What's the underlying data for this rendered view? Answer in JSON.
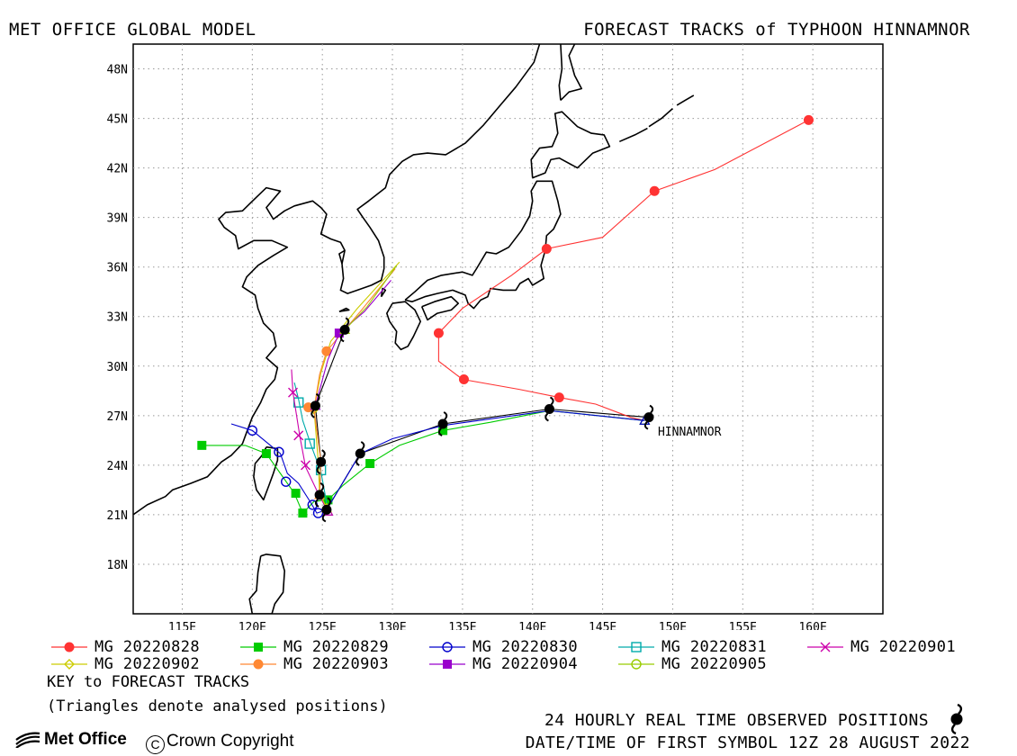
{
  "header": {
    "left_title": "MET OFFICE GLOBAL MODEL",
    "right_title": "FORECAST TRACKS of TYPHOON HINNAMNOR"
  },
  "map": {
    "lon_range": [
      111.5,
      165
    ],
    "lat_range": [
      15,
      49.5
    ],
    "lon_ticks": [
      "115E",
      "120E",
      "125E",
      "130E",
      "135E",
      "140E",
      "145E",
      "150E",
      "155E",
      "160E"
    ],
    "lon_tick_values": [
      115,
      120,
      125,
      130,
      135,
      140,
      145,
      150,
      155,
      160
    ],
    "lat_ticks": [
      "18N",
      "21N",
      "24N",
      "27N",
      "30N",
      "33N",
      "36N",
      "39N",
      "42N",
      "45N",
      "48N"
    ],
    "lat_tick_values": [
      18,
      21,
      24,
      27,
      30,
      33,
      36,
      39,
      42,
      45,
      48
    ],
    "grid": "dotted",
    "storm_label": "HINNAMNOR",
    "storm_label_position": [
      148.3,
      26.0
    ]
  },
  "chart_data": {
    "type": "map-tracks",
    "title": "FORECAST TRACKS of TYPHOON HINNAMNOR",
    "observed_track": [
      [
        148.3,
        26.9
      ],
      [
        141.2,
        27.4
      ],
      [
        133.6,
        26.5
      ],
      [
        127.7,
        24.7
      ],
      [
        125.3,
        21.3
      ],
      [
        124.8,
        22.2
      ],
      [
        124.9,
        24.2
      ],
      [
        124.5,
        27.6
      ],
      [
        126.6,
        32.2
      ]
    ],
    "tracks": [
      {
        "name": "MG 20220828",
        "color": "#ff3333",
        "marker": "circle-filled",
        "points": [
          [
            148.0,
            26.7
          ],
          [
            147.0,
            26.9
          ],
          [
            144.5,
            27.7
          ],
          [
            141.9,
            28.1
          ],
          [
            139.0,
            28.6
          ],
          [
            135.0,
            29.2
          ],
          [
            133.3,
            30.3
          ],
          [
            133.3,
            32.0
          ],
          [
            135.0,
            33.5
          ],
          [
            138.5,
            35.5
          ],
          [
            141.0,
            37.1
          ],
          [
            145.0,
            37.8
          ],
          [
            148.7,
            40.6
          ],
          [
            153.0,
            41.9
          ],
          [
            159.7,
            44.9
          ]
        ],
        "marker_points": [
          [
            141.9,
            28.1
          ],
          [
            135.1,
            29.2
          ],
          [
            133.3,
            32.0
          ],
          [
            141.0,
            37.1
          ],
          [
            148.7,
            40.6
          ],
          [
            159.7,
            44.9
          ]
        ]
      },
      {
        "name": "MG 20220829",
        "color": "#00cc00",
        "marker": "square-filled",
        "points": [
          [
            148.0,
            26.7
          ],
          [
            141.2,
            27.3
          ],
          [
            137.0,
            26.6
          ],
          [
            133.6,
            26.1
          ],
          [
            130.5,
            25.2
          ],
          [
            128.4,
            24.1
          ],
          [
            126.5,
            22.8
          ],
          [
            125.4,
            21.9
          ],
          [
            124.4,
            21.8
          ],
          [
            123.6,
            21.1
          ],
          [
            123.0,
            22.3
          ],
          [
            122.0,
            23.5
          ],
          [
            121.0,
            24.7
          ],
          [
            119.5,
            25.2
          ],
          [
            116.4,
            25.2
          ]
        ],
        "marker_points": [
          [
            128.4,
            24.1
          ],
          [
            133.6,
            26.1
          ],
          [
            125.4,
            21.9
          ],
          [
            123.6,
            21.1
          ],
          [
            123.1,
            22.3
          ],
          [
            121.0,
            24.7
          ],
          [
            116.4,
            25.2
          ]
        ]
      },
      {
        "name": "MG 20220830",
        "color": "#0000cc",
        "marker": "circle-open",
        "points": [
          [
            148.0,
            26.7
          ],
          [
            141.2,
            27.3
          ],
          [
            133.6,
            26.4
          ],
          [
            130.0,
            25.6
          ],
          [
            127.7,
            24.7
          ],
          [
            125.3,
            21.3
          ],
          [
            124.6,
            21.1
          ],
          [
            124.2,
            21.7
          ],
          [
            123.3,
            22.9
          ],
          [
            122.5,
            23.5
          ],
          [
            122.0,
            24.7
          ],
          [
            120.0,
            26.1
          ],
          [
            118.5,
            26.5
          ]
        ],
        "marker_points": [
          [
            124.7,
            21.1
          ],
          [
            124.3,
            21.6
          ],
          [
            122.4,
            23.0
          ],
          [
            121.9,
            24.8
          ],
          [
            120.0,
            26.1
          ]
        ]
      },
      {
        "name": "MG 20220831",
        "color": "#00aaaa",
        "marker": "square-open",
        "points": [
          [
            125.4,
            21.2
          ],
          [
            125.2,
            22.2
          ],
          [
            124.9,
            23.6
          ],
          [
            124.2,
            25.2
          ],
          [
            123.6,
            26.7
          ],
          [
            123.3,
            28.0
          ],
          [
            123.0,
            29.0
          ]
        ],
        "marker_points": [
          [
            124.9,
            23.7
          ],
          [
            124.1,
            25.3
          ],
          [
            123.3,
            27.8
          ]
        ]
      },
      {
        "name": "MG 20220901",
        "color": "#cc00aa",
        "marker": "x",
        "points": [
          [
            125.4,
            21.2
          ],
          [
            124.7,
            22.3
          ],
          [
            123.8,
            23.9
          ],
          [
            123.4,
            25.7
          ],
          [
            122.9,
            28.4
          ],
          [
            122.8,
            29.8
          ]
        ],
        "marker_points": [
          [
            123.8,
            24.0
          ],
          [
            123.3,
            25.8
          ],
          [
            122.9,
            28.4
          ]
        ]
      },
      {
        "name": "MG 20220902",
        "color": "#cccc00",
        "marker": "diamond-open",
        "points": [
          [
            125.3,
            21.4
          ],
          [
            124.8,
            22.3
          ],
          [
            124.7,
            24.3
          ],
          [
            124.4,
            27.4
          ],
          [
            124.9,
            29.6
          ],
          [
            125.6,
            31.5
          ],
          [
            127.5,
            33.5
          ],
          [
            130.5,
            36.3
          ]
        ],
        "marker_points": [
          [
            124.4,
            27.4
          ]
        ]
      },
      {
        "name": "MG 20220903",
        "color": "#ff8833",
        "marker": "circle-filled",
        "points": [
          [
            124.8,
            22.2
          ],
          [
            124.9,
            24.2
          ],
          [
            124.4,
            27.4
          ],
          [
            124.8,
            29.5
          ],
          [
            125.3,
            30.9
          ],
          [
            126.4,
            32.0
          ],
          [
            127.8,
            33.4
          ],
          [
            130.2,
            35.9
          ]
        ],
        "marker_points": [
          [
            124.0,
            27.5
          ],
          [
            125.3,
            30.9
          ]
        ]
      },
      {
        "name": "MG 20220904",
        "color": "#9900cc",
        "marker": "square-filled",
        "points": [
          [
            124.5,
            27.6
          ],
          [
            125.4,
            30.4
          ],
          [
            126.2,
            32.0
          ],
          [
            128.0,
            33.3
          ],
          [
            129.9,
            35.2
          ]
        ],
        "marker_points": [
          [
            126.2,
            32.0
          ]
        ]
      },
      {
        "name": "MG 20220905",
        "color": "#99cc00",
        "marker": "circle-open",
        "points": [
          [
            126.6,
            32.2
          ],
          [
            128.2,
            33.6
          ],
          [
            130.3,
            36.1
          ]
        ],
        "marker_points": []
      }
    ]
  },
  "legend": [
    {
      "label": "MG 20220828"
    },
    {
      "label": "MG 20220829"
    },
    {
      "label": "MG 20220830"
    },
    {
      "label": "MG 20220831"
    },
    {
      "label": "MG 20220901"
    },
    {
      "label": "MG 20220902"
    },
    {
      "label": "MG 20220903"
    },
    {
      "label": "MG 20220904"
    },
    {
      "label": "MG 20220905"
    }
  ],
  "key": {
    "title": "KEY to FORECAST TRACKS",
    "note": "(Triangles denote analysed positions)"
  },
  "footer": {
    "observed_label": "24 HOURLY REAL TIME OBSERVED POSITIONS",
    "datetime_label": "DATE/TIME OF FIRST SYMBOL 12Z 28 AUGUST 2022",
    "logo_text": "Met Office",
    "copyright_text": "Crown Copyright",
    "copyright_symbol": "C"
  },
  "colors": {
    "coastline": "#000000",
    "grid": "#999999"
  }
}
